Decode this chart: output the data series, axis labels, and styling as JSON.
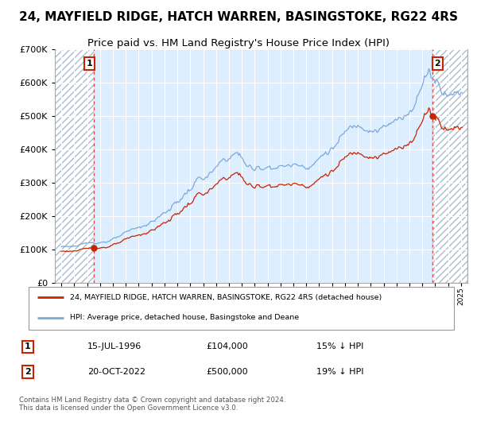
{
  "title": "24, MAYFIELD RIDGE, HATCH WARREN, BASINGSTOKE, RG22 4RS",
  "subtitle": "Price paid vs. HM Land Registry's House Price Index (HPI)",
  "legend_line1": "24, MAYFIELD RIDGE, HATCH WARREN, BASINGSTOKE, RG22 4RS (detached house)",
  "legend_line2": "HPI: Average price, detached house, Basingstoke and Deane",
  "annotation1_date": "15-JUL-1996",
  "annotation1_price": "£104,000",
  "annotation1_hpi": "15% ↓ HPI",
  "annotation2_date": "20-OCT-2022",
  "annotation2_price": "£500,000",
  "annotation2_hpi": "19% ↓ HPI",
  "footer": "Contains HM Land Registry data © Crown copyright and database right 2024.\nThis data is licensed under the Open Government Licence v3.0.",
  "sale1_year": 1996.54,
  "sale1_price": 104000,
  "sale2_year": 2022.79,
  "sale2_price": 500000,
  "red_line_color": "#cc2200",
  "blue_line_color": "#7aaadd",
  "dot_color": "#cc2200",
  "vline_color": "#dd4444",
  "ylim": [
    0,
    700000
  ],
  "xlim_start": 1993.5,
  "xlim_end": 2025.5,
  "plot_bg_color": "#ddeeff",
  "grid_color": "#ffffff",
  "title_fontsize": 11,
  "subtitle_fontsize": 9.5,
  "hpi_discount1": 0.85,
  "hpi_discount2": 0.81
}
